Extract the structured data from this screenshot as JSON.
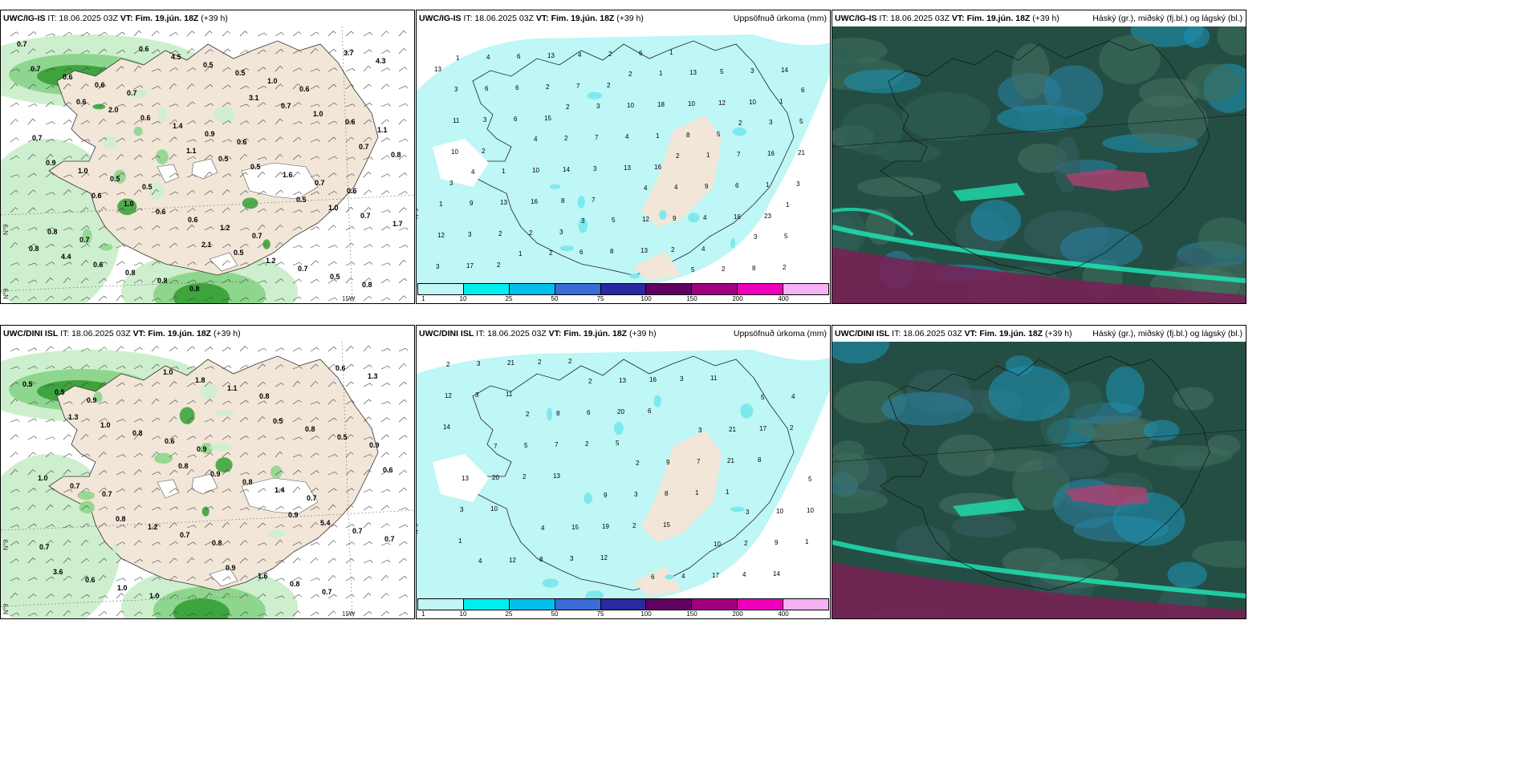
{
  "panels": [
    {
      "id": "p1",
      "model": "UWC/IG-IS",
      "it": "IT: 18.06.2025 03Z",
      "vt": "VT: Fim. 19.jún. 18Z",
      "lead": "(+39 h)",
      "right": "",
      "labels": [
        "0.7",
        "0.7",
        "0.6",
        "0.6",
        "0.7",
        "0.8",
        "0.6",
        "0.7",
        "0.5",
        "0.7",
        "0.8",
        "0.6",
        "0.9",
        "0.7",
        "0.8",
        "0.8",
        "1.0",
        "1.1",
        "0.5",
        "1.2",
        "0.5",
        "0.6",
        "1.4",
        "1.6",
        "1.7",
        "0.8",
        "0.5",
        "0.6",
        "1.0",
        "0.6",
        "0.7",
        "0.7",
        "0.6",
        "0.5",
        "0.7",
        "0.6",
        "0.5",
        "1.0",
        "0.9",
        "0.6",
        "1.2",
        "4.3",
        "2.0",
        "0.5",
        "1.0",
        "4.4",
        "4.5",
        "0.7",
        "0.8",
        "1.0",
        "0.5",
        "3.7",
        "0.6",
        "1.1",
        "0.5",
        "0.8",
        "0.6",
        "3.1",
        "0.7",
        "0.6",
        "2.1"
      ]
    },
    {
      "id": "p2",
      "model": "UWC/IG-IS",
      "it": "IT: 18.06.2025 03Z",
      "vt": "VT: Fim. 19.jún. 18Z",
      "lead": "(+39 h)",
      "right": "Uppsöfnuð úrkoma (mm)",
      "labels": [
        "1",
        "2",
        "2",
        "1",
        "1",
        "2",
        "2",
        "4",
        "3",
        "5",
        "6",
        "4",
        "4",
        "3",
        "4",
        "3",
        "1",
        "1",
        "2",
        "1",
        "3",
        "1",
        "5",
        "2",
        "3",
        "2",
        "4",
        "5",
        "6",
        "10",
        "7",
        "9",
        "6",
        "13",
        "5",
        "10",
        "12",
        "8",
        "6",
        "7",
        "9",
        "12",
        "13",
        "18",
        "16",
        "13",
        "8",
        "5",
        "11",
        "14",
        "9",
        "2",
        "6",
        "4",
        "6",
        "3",
        "4",
        "10",
        "21",
        "16",
        "13",
        "3",
        "3",
        "3",
        "4",
        "3",
        "2",
        "1",
        "1",
        "2",
        "2",
        "12",
        "10",
        "8",
        "2",
        "14",
        "6",
        "13",
        "16",
        "17",
        "7",
        "8",
        "3",
        "2",
        "6",
        "10",
        "2",
        "7",
        "4",
        "13",
        "15",
        "16",
        "23",
        "2",
        "2",
        "5",
        "3",
        "3",
        "1",
        "1"
      ]
    },
    {
      "id": "p3",
      "model": "UWC/IG-IS",
      "it": "IT: 18.06.2025 03Z",
      "vt": "VT: Fim. 19.jún. 18Z",
      "lead": "(+39 h)",
      "right": "Háský (gr.), miðský (fj.bl.) og lágský (bl.)",
      "labels": []
    },
    {
      "id": "p4",
      "model": "UWC/DINI ISL",
      "it": "IT: 18.06.2025 03Z",
      "vt": "VT: Fim. 19.jún. 18Z",
      "lead": "(+39 h)",
      "right": "",
      "labels": [
        "0.9",
        "0.9",
        "0.7",
        "0.7",
        "1.0",
        "0.8",
        "0.9",
        "0.7",
        "0.8",
        "0.7",
        "0.5",
        "0.6",
        "1.4",
        "0.7",
        "1.0",
        "1.1",
        "0.5",
        "0.7",
        "0.7",
        "0.8",
        "0.5",
        "0.8",
        "0.8",
        "0.7",
        "0.6",
        "1.8",
        "0.8",
        "1.0",
        "1.2",
        "1.6",
        "1.3",
        "1.0",
        "0.9",
        "5.4",
        "3.6",
        "1.0",
        "0.5",
        "0.6",
        "0.8",
        "0.9",
        "0.6",
        "1.3",
        "0.8",
        "0.9"
      ]
    },
    {
      "id": "p5",
      "model": "UWC/DINI ISL",
      "it": "IT: 18.06.2025 03Z",
      "vt": "VT: Fim. 19.jún. 18Z",
      "lead": "(+39 h)",
      "right": "Uppsöfnuð úrkoma (mm)",
      "labels": [
        "2",
        "2",
        "3",
        "4",
        "2",
        "3",
        "5",
        "4",
        "6",
        "5",
        "7",
        "9",
        "10",
        "2",
        "8",
        "9",
        "10",
        "12",
        "13",
        "21",
        "13",
        "15",
        "4",
        "4",
        "5",
        "3",
        "2",
        "3",
        "6",
        "7",
        "10",
        "8",
        "16",
        "17",
        "20",
        "19",
        "17",
        "12",
        "7",
        "8",
        "9",
        "21",
        "20",
        "21",
        "3",
        "3",
        "3",
        "2",
        "2",
        "2",
        "4",
        "3",
        "2",
        "1",
        "1",
        "2",
        "6",
        "8",
        "10",
        "12",
        "11",
        "14",
        "13",
        "15",
        "14",
        "11",
        "5",
        "1",
        "1",
        "2"
      ]
    },
    {
      "id": "p6",
      "model": "UWC/DINI ISL",
      "it": "IT: 18.06.2025 03Z",
      "vt": "VT: Fim. 19.jún. 18Z",
      "lead": "(+39 h)",
      "right": "Háský (gr.), miðský (fj.bl.) og lágský (bl.)",
      "labels": []
    }
  ],
  "colorbar": {
    "ticks": [
      "1",
      "10",
      "25",
      "50",
      "75",
      "100",
      "150",
      "200",
      "400"
    ],
    "colors": [
      "#bff6f6",
      "#00eeee",
      "#00bfee",
      "#3a6bd8",
      "#2a2aa0",
      "#600060",
      "#a00080",
      "#ee00bb",
      "#f6b0f6"
    ]
  },
  "graticule": {
    "lat": "N°9",
    "lon": "15W",
    "lat2": "N°9",
    "lat3": "N°9"
  },
  "colors": {
    "land": "#f2e6d8",
    "precip_light": "#bff6f6",
    "precip_mid": "#7ee8ee",
    "green1": "#cdefcd",
    "green2": "#8ed68e",
    "green3": "#3ea43e",
    "cloud_bg": "#244e44"
  }
}
